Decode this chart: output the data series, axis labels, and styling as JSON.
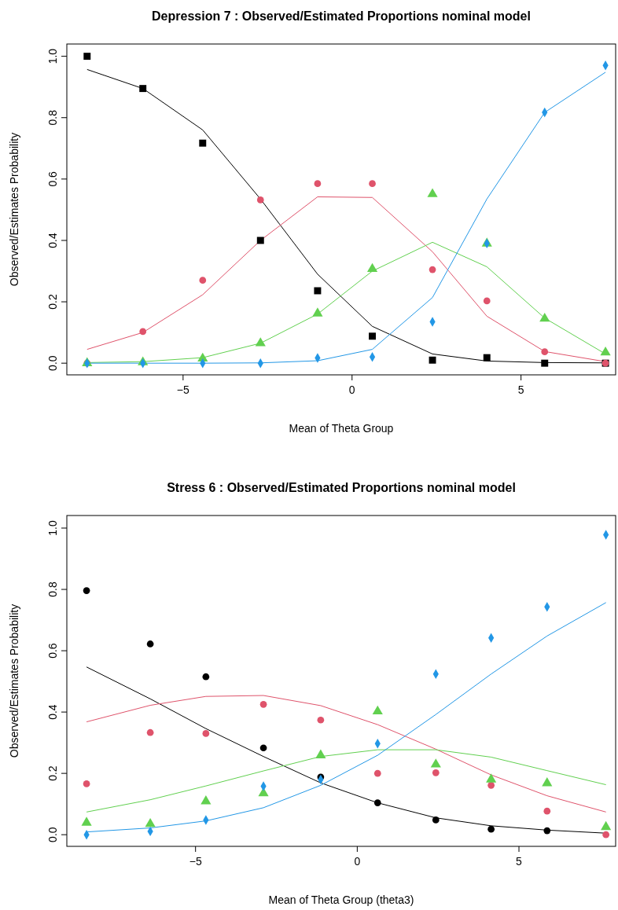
{
  "chart_data": [
    {
      "type": "line",
      "title": "Depression 7 : Observed/Estimated Proportions nominal model",
      "xlabel": "Mean of Theta Group",
      "ylabel": "Observed/Estimates Probability",
      "xlim": [
        -8.44,
        7.8
      ],
      "ylim": [
        -0.038,
        1.04
      ],
      "xticks": [
        {
          "value": -5,
          "label": "−5"
        },
        {
          "value": 0,
          "label": "0"
        },
        {
          "value": 5,
          "label": "5"
        }
      ],
      "yticks": [
        {
          "value": 0,
          "label": "0.0"
        },
        {
          "value": 0.2,
          "label": "0.2"
        },
        {
          "value": 0.4,
          "label": "0.4"
        },
        {
          "value": 0.6,
          "label": "0.6"
        },
        {
          "value": 0.8,
          "label": "0.8"
        },
        {
          "value": 1,
          "label": "1.0"
        }
      ],
      "grid": false,
      "x": [
        -7.84,
        -6.19,
        -4.42,
        -2.71,
        -1.02,
        0.6,
        2.38,
        3.99,
        5.7,
        7.5
      ],
      "series": [
        {
          "color": "#000000",
          "marker": "none",
          "values": [
            0.957,
            0.895,
            0.76,
            0.535,
            0.29,
            0.12,
            0.03,
            0.007,
            0.002,
            0.001
          ]
        },
        {
          "color": "#df536b",
          "marker": "none",
          "values": [
            0.045,
            0.1,
            0.223,
            0.4,
            0.542,
            0.54,
            0.363,
            0.153,
            0.038,
            0.005
          ]
        },
        {
          "color": "#61d04f",
          "marker": "none",
          "values": [
            0.002,
            0.005,
            0.018,
            0.065,
            0.16,
            0.3,
            0.394,
            0.314,
            0.147,
            0.03
          ]
        },
        {
          "color": "#2297e6",
          "marker": "none",
          "values": [
            0,
            0,
            0,
            0.001,
            0.008,
            0.045,
            0.214,
            0.535,
            0.817,
            0.948
          ]
        },
        {
          "type": "scatter",
          "color": "#000000",
          "marker": "square",
          "values": [
            1,
            0.895,
            0.717,
            0.4,
            0.236,
            0.088,
            0.01,
            0.018,
            0,
            0
          ]
        },
        {
          "type": "scatter",
          "color": "#df536b",
          "marker": "circle",
          "values": [
            0,
            0.103,
            0.27,
            0.532,
            0.585,
            0.585,
            0.305,
            0.203,
            0.037,
            0
          ]
        },
        {
          "type": "scatter",
          "color": "#61d04f",
          "marker": "triangle",
          "values": [
            0,
            0.003,
            0.015,
            0.065,
            0.162,
            0.307,
            0.551,
            0.39,
            0.145,
            0.035
          ]
        },
        {
          "type": "scatter",
          "color": "#2297e6",
          "marker": "diamond",
          "values": [
            0,
            0,
            0,
            0,
            0.017,
            0.02,
            0.135,
            0.39,
            0.817,
            0.97
          ]
        }
      ]
    },
    {
      "type": "line",
      "title": "Stress 6 : Observed/Estimated Proportions nominal model",
      "xlabel": "Mean of Theta Group (theta3)",
      "ylabel": "Observed/Estimates Probability",
      "xlim": [
        -8.98,
        7.99
      ],
      "ylim": [
        -0.038,
        1.041
      ],
      "xticks": [
        {
          "value": -5,
          "label": "−5"
        },
        {
          "value": 0,
          "label": "0"
        },
        {
          "value": 5,
          "label": "5"
        }
      ],
      "yticks": [
        {
          "value": 0,
          "label": "0.0"
        },
        {
          "value": 0.2,
          "label": "0.2"
        },
        {
          "value": 0.4,
          "label": "0.4"
        },
        {
          "value": 0.6,
          "label": "0.6"
        },
        {
          "value": 0.8,
          "label": "0.8"
        },
        {
          "value": 1,
          "label": "1.0"
        }
      ],
      "grid": false,
      "x": [
        -8.37,
        -6.4,
        -4.68,
        -2.9,
        -1.13,
        0.63,
        2.43,
        4.14,
        5.87,
        7.69
      ],
      "series": [
        {
          "color": "#000000",
          "marker": "none",
          "values": [
            0.547,
            0.443,
            0.346,
            0.255,
            0.169,
            0.104,
            0.055,
            0.029,
            0.015,
            0.005
          ]
        },
        {
          "color": "#df536b",
          "marker": "none",
          "values": [
            0.368,
            0.422,
            0.451,
            0.454,
            0.421,
            0.359,
            0.279,
            0.195,
            0.127,
            0.074
          ]
        },
        {
          "color": "#61d04f",
          "marker": "none",
          "values": [
            0.074,
            0.114,
            0.159,
            0.208,
            0.255,
            0.277,
            0.277,
            0.253,
            0.209,
            0.163
          ]
        },
        {
          "color": "#2297e6",
          "marker": "none",
          "values": [
            0.009,
            0.022,
            0.045,
            0.088,
            0.161,
            0.259,
            0.392,
            0.524,
            0.648,
            0.757
          ]
        },
        {
          "type": "scatter",
          "color": "#000000",
          "marker": "circle",
          "values": [
            0.796,
            0.622,
            0.515,
            0.283,
            0.188,
            0.104,
            0.048,
            0.018,
            0.013,
            null
          ]
        },
        {
          "type": "scatter",
          "color": "#df536b",
          "marker": "circle",
          "values": [
            0.166,
            0.333,
            0.33,
            0.425,
            0.374,
            0.2,
            0.202,
            0.161,
            0.077,
            0
          ]
        },
        {
          "type": "scatter",
          "color": "#61d04f",
          "marker": "triangle",
          "values": [
            0.039,
            0.035,
            0.109,
            0.135,
            0.259,
            0.402,
            0.229,
            0.18,
            0.168,
            0.025
          ]
        },
        {
          "type": "scatter",
          "color": "#2297e6",
          "marker": "diamond",
          "values": [
            0,
            0.011,
            0.048,
            0.158,
            0.18,
            0.297,
            0.524,
            0.642,
            0.743,
            0.978
          ]
        }
      ]
    }
  ]
}
